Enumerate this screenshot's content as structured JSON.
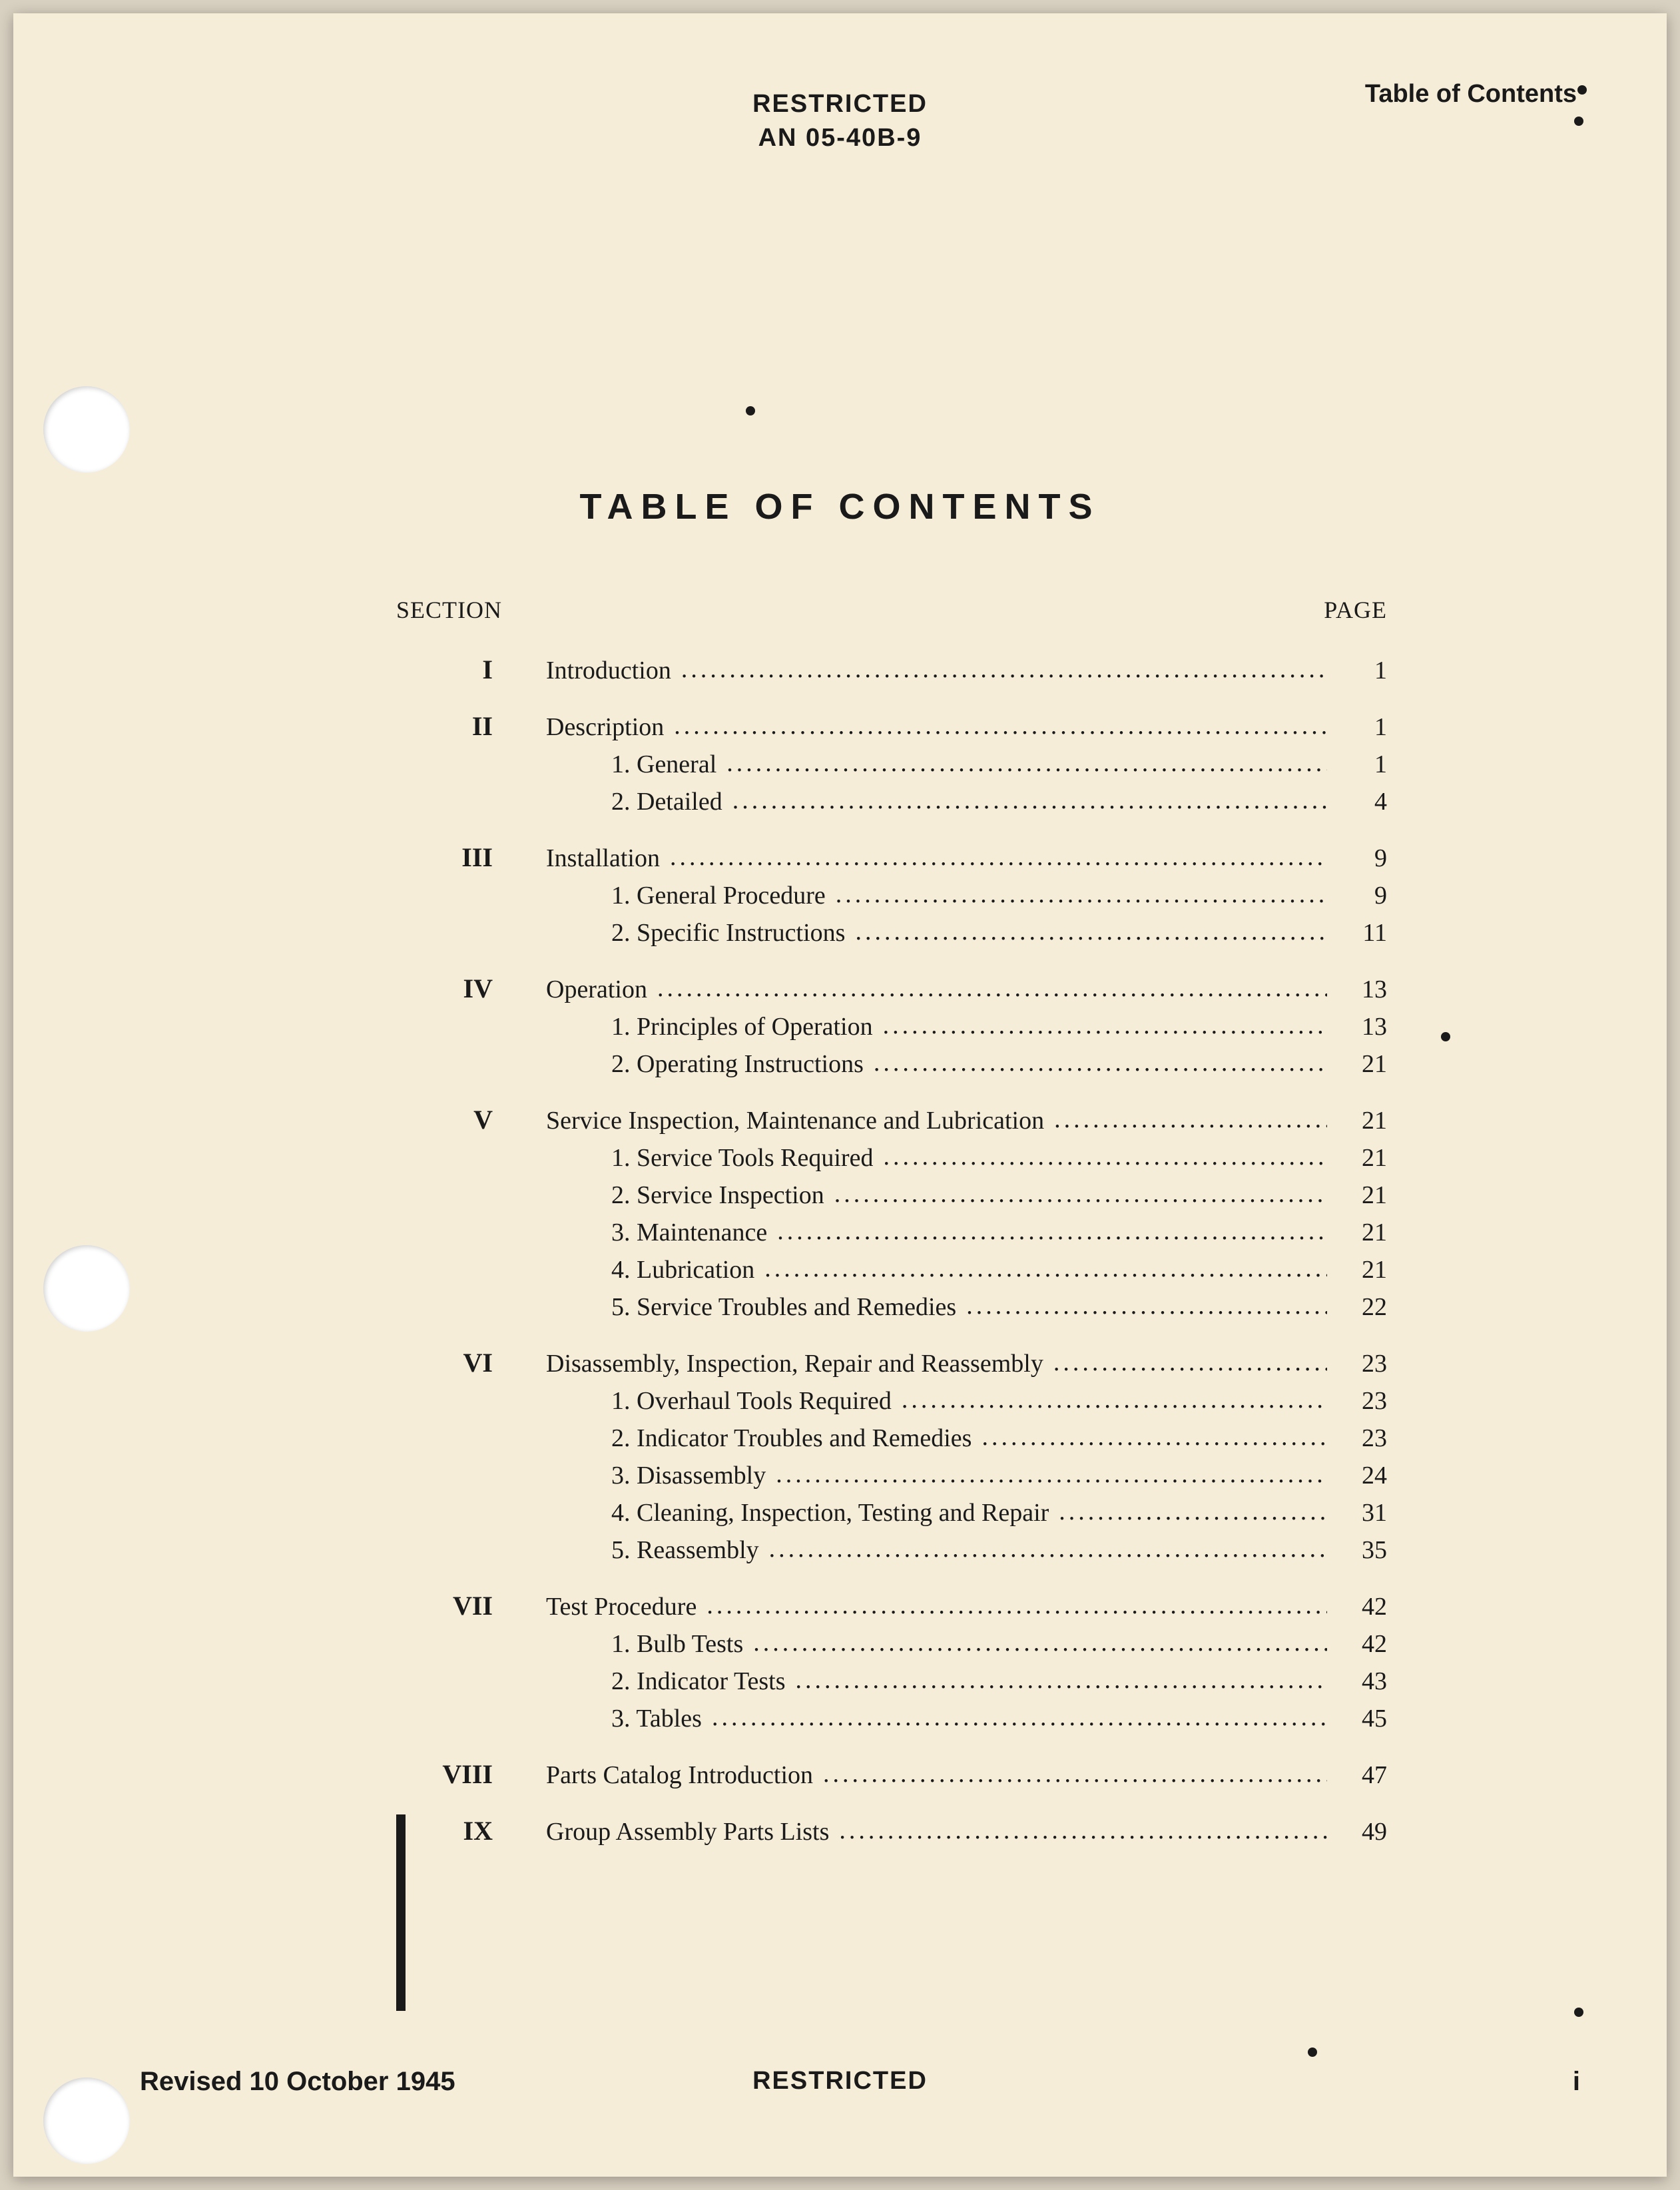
{
  "header": {
    "restricted": "RESTRICTED",
    "doc_number": "AN 05-40B-9",
    "toc_label": "Table of Contents"
  },
  "main_title": "TABLE OF CONTENTS",
  "toc": {
    "section_label": "SECTION",
    "page_label": "PAGE",
    "sections": [
      {
        "num": "I",
        "title": "Introduction",
        "page": "1",
        "subs": []
      },
      {
        "num": "II",
        "title": "Description",
        "page": "1",
        "subs": [
          {
            "label": "1. General",
            "page": "1"
          },
          {
            "label": "2. Detailed",
            "page": "4"
          }
        ]
      },
      {
        "num": "III",
        "title": "Installation",
        "page": "9",
        "subs": [
          {
            "label": "1. General Procedure",
            "page": "9"
          },
          {
            "label": "2. Specific Instructions",
            "page": "11"
          }
        ]
      },
      {
        "num": "IV",
        "title": "Operation",
        "page": "13",
        "subs": [
          {
            "label": "1. Principles of Operation",
            "page": "13"
          },
          {
            "label": "2. Operating Instructions",
            "page": "21"
          }
        ]
      },
      {
        "num": "V",
        "title": "Service Inspection, Maintenance and Lubrication",
        "page": "21",
        "subs": [
          {
            "label": "1. Service Tools Required",
            "page": "21"
          },
          {
            "label": "2. Service Inspection",
            "page": "21"
          },
          {
            "label": "3. Maintenance",
            "page": "21"
          },
          {
            "label": "4. Lubrication",
            "page": "21"
          },
          {
            "label": "5. Service Troubles and Remedies",
            "page": "22"
          }
        ]
      },
      {
        "num": "VI",
        "title": "Disassembly, Inspection, Repair and Reassembly",
        "page": "23",
        "subs": [
          {
            "label": "1. Overhaul Tools Required",
            "page": "23"
          },
          {
            "label": "2. Indicator Troubles and Remedies",
            "page": "23"
          },
          {
            "label": "3. Disassembly",
            "page": "24"
          },
          {
            "label": "4. Cleaning, Inspection, Testing and Repair",
            "page": "31"
          },
          {
            "label": "5. Reassembly",
            "page": "35"
          }
        ]
      },
      {
        "num": "VII",
        "title": "Test Procedure",
        "page": "42",
        "subs": [
          {
            "label": "1. Bulb Tests",
            "page": "42"
          },
          {
            "label": "2. Indicator Tests",
            "page": "43"
          },
          {
            "label": "3. Tables",
            "page": "45"
          }
        ]
      },
      {
        "num": "VIII",
        "title": "Parts Catalog Introduction",
        "page": "47",
        "subs": []
      },
      {
        "num": "IX",
        "title": "Group Assembly Parts Lists",
        "page": "49",
        "subs": []
      }
    ]
  },
  "footer": {
    "revision_date": "Revised 10 October 1945",
    "restricted": "RESTRICTED",
    "page_num": "i"
  },
  "colors": {
    "page_background": "#f5edd8",
    "outer_background": "#d8d0c0",
    "text": "#1a1a1a",
    "punch_hole": "#ffffff"
  }
}
